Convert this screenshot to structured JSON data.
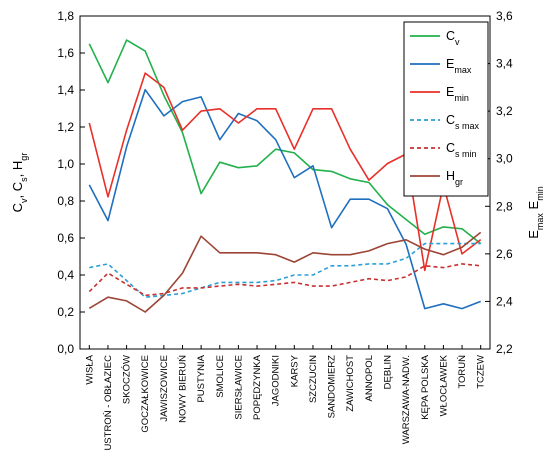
{
  "chart_data": {
    "type": "line",
    "categories": [
      "WISŁA",
      "USTROŃ - OBŁAZIEC",
      "SKOCZÓW",
      "GOCZAŁKOWICE",
      "JAWISZOWICE",
      "NOWY BIERUŃ",
      "PUSTYNIA",
      "SMOLICE",
      "SIERSŁAWICE",
      "POPĘDZYNKA",
      "JAGODNIKI",
      "KARSY",
      "SZCZUCIN",
      "SANDOMIERZ",
      "ZAWICHOST",
      "ANNOPOL",
      "DĘBLIN",
      "WARSZAWA-NADW.",
      "KĘPA POLSKA",
      "WŁOCŁAWEK",
      "TORUŃ",
      "TCZEW"
    ],
    "left_axis": {
      "ylim": [
        0,
        1.8
      ],
      "ticks": [
        "0,0",
        "0,2",
        "0,4",
        "0,6",
        "0,8",
        "1,0",
        "1,2",
        "1,4",
        "1,6",
        "1,8"
      ],
      "label_main": "C",
      "label_parts": [
        {
          "text": "C",
          "sub": "v"
        },
        {
          "text": ", C",
          "sub": "s"
        },
        {
          "text": ", H",
          "sub": "gr"
        }
      ]
    },
    "right_axis": {
      "ylim": [
        2.2,
        3.6
      ],
      "ticks": [
        "2,2",
        "2,4",
        "2,6",
        "2,8",
        "3,0",
        "3,2",
        "3,4",
        "3,6"
      ],
      "label_parts": [
        {
          "text": "E",
          "sub": "max"
        },
        {
          "text": " E",
          "sub": "min"
        }
      ]
    },
    "series": [
      {
        "name": "C",
        "sub": "v",
        "axis": "left",
        "color": "#22b14c",
        "dash": false,
        "values": [
          1.65,
          1.44,
          1.67,
          1.61,
          1.37,
          1.17,
          0.84,
          1.01,
          0.98,
          0.99,
          1.08,
          1.06,
          0.97,
          0.96,
          0.92,
          0.9,
          0.78,
          0.7,
          0.62,
          0.66,
          0.65,
          0.57
        ]
      },
      {
        "name": "E",
        "sub": "max",
        "axis": "right",
        "color": "#1f6fbf",
        "dash": false,
        "values": [
          2.89,
          2.74,
          3.05,
          3.29,
          3.18,
          3.24,
          3.26,
          3.08,
          3.19,
          3.16,
          3.08,
          2.92,
          2.97,
          2.71,
          2.83,
          2.83,
          2.79,
          2.64,
          2.37,
          2.39,
          2.37,
          2.4
        ]
      },
      {
        "name": "E",
        "sub": "min",
        "axis": "right",
        "color": "#e8302a",
        "dash": false,
        "values": [
          3.15,
          2.84,
          3.12,
          3.36,
          3.3,
          3.12,
          3.2,
          3.21,
          3.15,
          3.21,
          3.21,
          3.04,
          3.21,
          3.21,
          3.04,
          2.91,
          2.98,
          3.02,
          2.53,
          2.89,
          2.6,
          2.66
        ]
      },
      {
        "name": "C",
        "sub": "s max",
        "axis": "left",
        "color": "#2a9fd8",
        "dash": true,
        "values": [
          0.44,
          0.46,
          0.37,
          0.28,
          0.29,
          0.3,
          0.33,
          0.36,
          0.36,
          0.36,
          0.37,
          0.4,
          0.4,
          0.45,
          0.45,
          0.46,
          0.46,
          0.49,
          0.57,
          0.57,
          0.57,
          0.57
        ]
      },
      {
        "name": "C",
        "sub": "s min",
        "axis": "left",
        "color": "#c73030",
        "dash": true,
        "values": [
          0.31,
          0.41,
          0.35,
          0.29,
          0.3,
          0.33,
          0.33,
          0.34,
          0.35,
          0.34,
          0.35,
          0.36,
          0.34,
          0.34,
          0.36,
          0.38,
          0.37,
          0.39,
          0.45,
          0.44,
          0.46,
          0.45
        ]
      },
      {
        "name": "H",
        "sub": "gr",
        "axis": "left",
        "color": "#9b4535",
        "dash": false,
        "values": [
          0.22,
          0.28,
          0.26,
          0.2,
          0.29,
          0.41,
          0.61,
          0.52,
          0.52,
          0.52,
          0.51,
          0.47,
          0.52,
          0.51,
          0.51,
          0.53,
          0.57,
          0.59,
          0.54,
          0.51,
          0.55,
          0.63
        ]
      }
    ],
    "legend_position": "top-right",
    "grid": false
  }
}
